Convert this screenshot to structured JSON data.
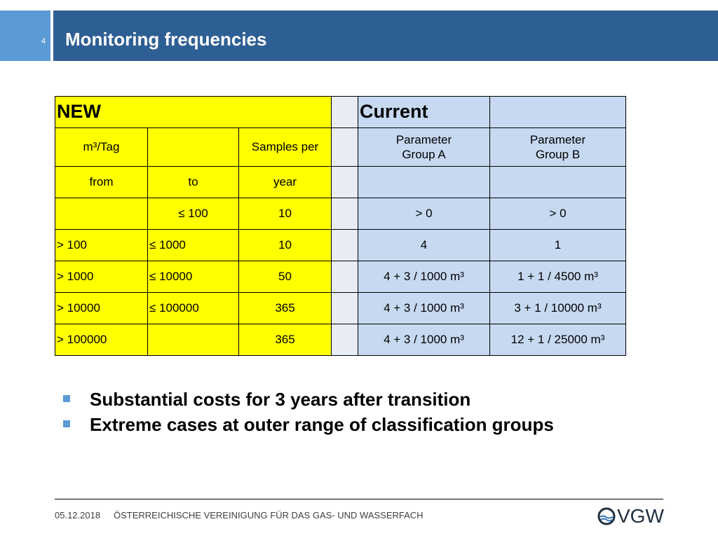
{
  "slide": {
    "number": "4",
    "title": "Monitoring frequencies"
  },
  "table": {
    "header_new": "NEW",
    "header_current": "Current",
    "sub1": [
      "m³/Tag",
      "",
      "Samples per",
      "",
      "Parameter\nGroup A",
      "Parameter\nGroup B"
    ],
    "sub2": [
      "from",
      "to",
      "year",
      "",
      "",
      ""
    ],
    "rows": [
      [
        "",
        "≤ 100",
        "10",
        "",
        "> 0",
        "> 0"
      ],
      [
        "> 100",
        "≤ 1000",
        "10",
        "",
        "4",
        "1"
      ],
      [
        "> 1000",
        "≤ 10000",
        "50",
        "",
        "4 + 3 / 1000 m³",
        "1 + 1 / 4500 m³"
      ],
      [
        "> 10000",
        "≤ 100000",
        "365",
        "",
        "4 + 3 / 1000 m³",
        "3 + 1 / 10000 m³"
      ],
      [
        "> 100000",
        "",
        "365",
        "",
        "4 + 3 / 1000 m³",
        "12 + 1 / 25000 m³"
      ]
    ]
  },
  "bullets": [
    "Substantial costs for 3 years after transition",
    "Extreme cases at outer range of classification groups"
  ],
  "footer": {
    "date": "05.12.2018",
    "organization": "ÖSTERREICHISCHE VEREINIGUNG FÜR DAS GAS- UND WASSERFACH",
    "logo_text": "VGW"
  },
  "colors": {
    "accent_light": "#5b9bd5",
    "title_bar": "#2e5f94",
    "new_yellow": "#ffff00",
    "current_blue": "#c6d9f1"
  }
}
